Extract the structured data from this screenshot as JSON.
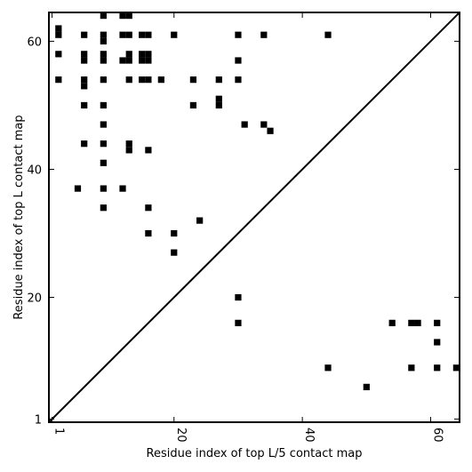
{
  "chart_data": {
    "type": "scatter",
    "marker": "square",
    "title": "",
    "xlabel": "Residue index of top L/5 contact map",
    "ylabel": "Residue index of top L contact map",
    "xlim": [
      0.5,
      64.5
    ],
    "ylim": [
      0.5,
      64.5
    ],
    "x_ticks": [
      1,
      20,
      40,
      60
    ],
    "y_ticks": [
      1,
      20,
      40,
      60
    ],
    "x_tick_labels": [
      "1",
      "20",
      "40",
      "60"
    ],
    "y_tick_labels": [
      "1",
      "20",
      "40",
      "60"
    ],
    "diagonal": true,
    "grid": false,
    "color": "#000000",
    "upper_points": [
      [
        2,
        61
      ],
      [
        2,
        62
      ],
      [
        2,
        58
      ],
      [
        2,
        54
      ],
      [
        6,
        61
      ],
      [
        6,
        58
      ],
      [
        6,
        57
      ],
      [
        6,
        54
      ],
      [
        6,
        53
      ],
      [
        6,
        50
      ],
      [
        6,
        44
      ],
      [
        9,
        64
      ],
      [
        9,
        61
      ],
      [
        9,
        60
      ],
      [
        9,
        58
      ],
      [
        9,
        57
      ],
      [
        9,
        54
      ],
      [
        9,
        50
      ],
      [
        9,
        47
      ],
      [
        9,
        44
      ],
      [
        9,
        41
      ],
      [
        9,
        37
      ],
      [
        9,
        34
      ],
      [
        5,
        37
      ],
      [
        12,
        64
      ],
      [
        12,
        61
      ],
      [
        12,
        57
      ],
      [
        12,
        37
      ],
      [
        13,
        64
      ],
      [
        13,
        61
      ],
      [
        13,
        58
      ],
      [
        13,
        57
      ],
      [
        13,
        54
      ],
      [
        13,
        44
      ],
      [
        13,
        43
      ],
      [
        15,
        61
      ],
      [
        15,
        58
      ],
      [
        15,
        57
      ],
      [
        15,
        54
      ],
      [
        16,
        61
      ],
      [
        16,
        58
      ],
      [
        16,
        57
      ],
      [
        16,
        54
      ],
      [
        16,
        43
      ],
      [
        16,
        34
      ],
      [
        16,
        30
      ],
      [
        18,
        54
      ],
      [
        20,
        61
      ],
      [
        20,
        30
      ],
      [
        20,
        27
      ],
      [
        23,
        54
      ],
      [
        23,
        50
      ],
      [
        24,
        32
      ],
      [
        27,
        54
      ],
      [
        27,
        51
      ],
      [
        27,
        50
      ],
      [
        30,
        61
      ],
      [
        30,
        57
      ],
      [
        30,
        54
      ],
      [
        30,
        20
      ],
      [
        30,
        16
      ],
      [
        31,
        47
      ],
      [
        34,
        61
      ],
      [
        34,
        47
      ],
      [
        35,
        46
      ],
      [
        44,
        61
      ]
    ],
    "lower_points": [
      [
        44,
        9
      ],
      [
        50,
        6
      ],
      [
        54,
        16
      ],
      [
        57,
        16
      ],
      [
        58,
        16
      ],
      [
        57,
        9
      ],
      [
        61,
        16
      ],
      [
        61,
        13
      ],
      [
        61,
        9
      ],
      [
        64,
        9
      ]
    ]
  }
}
